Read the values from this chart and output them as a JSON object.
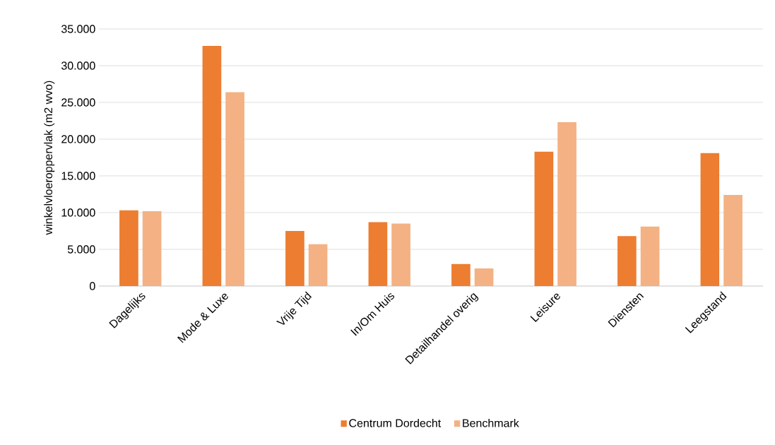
{
  "chart_data": {
    "type": "bar",
    "ylabel": "winkelvloeroppervlak (m2 wvo)",
    "categories": [
      "Dagelijks",
      "Mode & Luxe",
      "Vrije Tijd",
      "In/Om Huis",
      "Detailhandel overig",
      "Leisure",
      "Diensten",
      "Leegstand"
    ],
    "series": [
      {
        "name": "Centrum Dordecht",
        "color": "#ed7d31",
        "values": [
          10300,
          32700,
          7500,
          8700,
          3000,
          18300,
          6800,
          18100
        ]
      },
      {
        "name": "Benchmark",
        "color": "#f4b183",
        "values": [
          10200,
          26400,
          5700,
          8500,
          2400,
          22300,
          8100,
          12400
        ]
      }
    ],
    "ylim": [
      0,
      35000
    ],
    "yticks": [
      0,
      {
        "value": 5000,
        "label": "5.000"
      },
      {
        "value": 10000,
        "label": "10.000"
      },
      {
        "value": 15000,
        "label": "15.000"
      },
      {
        "value": 20000,
        "label": "20.000"
      },
      {
        "value": 25000,
        "label": "25.000"
      },
      {
        "value": 30000,
        "label": "30.000"
      },
      {
        "value": 35000,
        "label": "35.000"
      }
    ],
    "grid": "y",
    "legend": "bottom"
  }
}
